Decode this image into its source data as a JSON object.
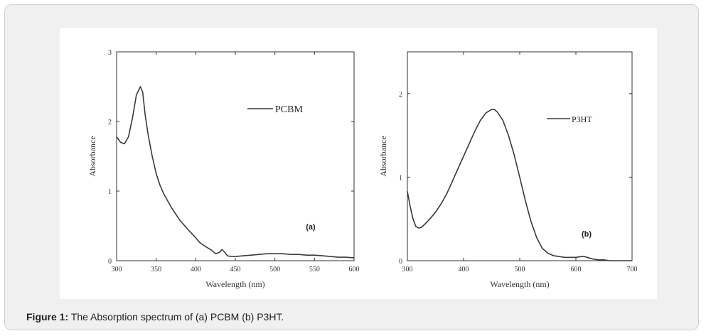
{
  "caption": {
    "label": "Figure 1:",
    "text": " The Absorption spectrum of (a) PCBM (b) P3HT."
  },
  "chart_data": [
    {
      "type": "line",
      "panel_label": "(a)",
      "xlabel": "Wavelength (nm)",
      "ylabel": "Absorbance",
      "xlim": [
        300,
        600
      ],
      "ylim": [
        0,
        3
      ],
      "xticks": [
        300,
        350,
        400,
        450,
        500,
        550,
        600
      ],
      "yticks": [
        0,
        1,
        2,
        3
      ],
      "legend_position": "top-right",
      "series": [
        {
          "name": "PCBM",
          "color": "#3a3a3a",
          "x": [
            300,
            305,
            310,
            315,
            320,
            325,
            330,
            333,
            336,
            340,
            345,
            350,
            355,
            360,
            370,
            380,
            390,
            400,
            405,
            410,
            420,
            425,
            430,
            433,
            436,
            440,
            445,
            450,
            460,
            470,
            480,
            490,
            500,
            510,
            520,
            530,
            540,
            550,
            560,
            570,
            580,
            590,
            600
          ],
          "y": [
            1.78,
            1.7,
            1.68,
            1.78,
            2.05,
            2.38,
            2.5,
            2.42,
            2.1,
            1.8,
            1.5,
            1.25,
            1.08,
            0.95,
            0.75,
            0.58,
            0.45,
            0.33,
            0.26,
            0.22,
            0.15,
            0.1,
            0.12,
            0.16,
            0.13,
            0.07,
            0.06,
            0.06,
            0.07,
            0.08,
            0.09,
            0.1,
            0.1,
            0.1,
            0.09,
            0.09,
            0.08,
            0.08,
            0.07,
            0.06,
            0.05,
            0.05,
            0.04
          ]
        }
      ]
    },
    {
      "type": "line",
      "panel_label": "(b)",
      "xlabel": "Wavelength (nm)",
      "ylabel": "Absorbance",
      "xlim": [
        300,
        700
      ],
      "ylim": [
        0,
        2.5
      ],
      "xticks": [
        300,
        400,
        500,
        600,
        700
      ],
      "yticks": [
        0,
        1,
        2
      ],
      "legend_position": "top-right",
      "series": [
        {
          "name": "P3HT",
          "color": "#3a3a3a",
          "x": [
            300,
            305,
            310,
            315,
            320,
            325,
            330,
            340,
            350,
            360,
            370,
            380,
            390,
            400,
            410,
            420,
            430,
            440,
            450,
            455,
            460,
            470,
            480,
            490,
            500,
            510,
            520,
            530,
            540,
            550,
            560,
            570,
            580,
            590,
            600,
            610,
            615,
            620,
            630,
            640,
            650,
            660,
            680,
            700
          ],
          "y": [
            0.83,
            0.65,
            0.5,
            0.41,
            0.39,
            0.4,
            0.43,
            0.5,
            0.58,
            0.68,
            0.8,
            0.95,
            1.1,
            1.25,
            1.4,
            1.55,
            1.68,
            1.77,
            1.81,
            1.81,
            1.78,
            1.68,
            1.5,
            1.27,
            1.0,
            0.72,
            0.47,
            0.28,
            0.15,
            0.09,
            0.06,
            0.05,
            0.04,
            0.04,
            0.04,
            0.05,
            0.05,
            0.04,
            0.02,
            0.01,
            0.01,
            0.0,
            0.0,
            0.0
          ]
        }
      ]
    }
  ]
}
